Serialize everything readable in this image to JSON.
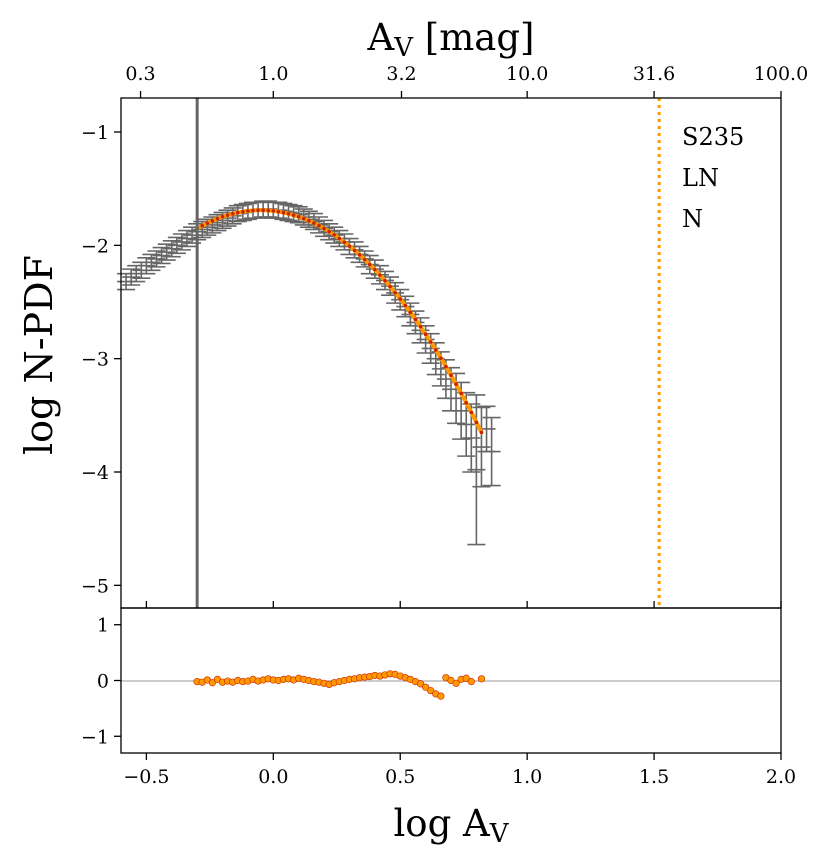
{
  "chart_data": [
    {
      "type": "scatter",
      "panel": "main",
      "title": "",
      "xlabel": "log A_V",
      "ylabel": "log N-PDF",
      "xlim": [
        -0.6,
        2.0
      ],
      "ylim": [
        -5.2,
        -0.7
      ],
      "top_axis": {
        "label": "A_V [mag]",
        "ticks": [
          {
            "logx": -0.523,
            "label": "0.3"
          },
          {
            "logx": 0.0,
            "label": "1.0"
          },
          {
            "logx": 0.505,
            "label": "3.2"
          },
          {
            "logx": 1.0,
            "label": "10.0"
          },
          {
            "logx": 1.5,
            "label": "31.6"
          },
          {
            "logx": 2.0,
            "label": "100.0"
          }
        ]
      },
      "xticks": [
        -0.5,
        0.0,
        0.5,
        1.0,
        1.5,
        2.0
      ],
      "xtick_labels": [
        "−0.5",
        "0.0",
        "0.5",
        "1.0",
        "1.5",
        "2.0"
      ],
      "yticks": [
        -1,
        -2,
        -3,
        -4,
        -5
      ],
      "ytick_labels": [
        "−1",
        "−2",
        "−3",
        "−4",
        "−5"
      ],
      "legend": [
        "S235",
        "LN",
        "N"
      ],
      "legend_placement": "top-right",
      "vertical_lines": [
        {
          "x": -0.3,
          "style": "solid",
          "color": "#666666"
        },
        {
          "x": 1.52,
          "style": "dotted",
          "color": "#ff9900"
        }
      ],
      "pdf_points": [
        {
          "x": -0.58,
          "y": -2.32,
          "err": 0.07
        },
        {
          "x": -0.56,
          "y": -2.28,
          "err": 0.07
        },
        {
          "x": -0.54,
          "y": -2.25,
          "err": 0.07
        },
        {
          "x": -0.52,
          "y": -2.22,
          "err": 0.07
        },
        {
          "x": -0.5,
          "y": -2.18,
          "err": 0.07
        },
        {
          "x": -0.48,
          "y": -2.15,
          "err": 0.07
        },
        {
          "x": -0.46,
          "y": -2.12,
          "err": 0.07
        },
        {
          "x": -0.44,
          "y": -2.09,
          "err": 0.07
        },
        {
          "x": -0.42,
          "y": -2.06,
          "err": 0.07
        },
        {
          "x": -0.4,
          "y": -2.03,
          "err": 0.07
        },
        {
          "x": -0.38,
          "y": -2.0,
          "err": 0.07
        },
        {
          "x": -0.36,
          "y": -1.97,
          "err": 0.07
        },
        {
          "x": -0.34,
          "y": -1.94,
          "err": 0.07
        },
        {
          "x": -0.32,
          "y": -1.91,
          "err": 0.07
        },
        {
          "x": -0.3,
          "y": -1.88,
          "err": 0.07
        },
        {
          "x": -0.28,
          "y": -1.86,
          "err": 0.07
        },
        {
          "x": -0.26,
          "y": -1.84,
          "err": 0.07
        },
        {
          "x": -0.24,
          "y": -1.82,
          "err": 0.07
        },
        {
          "x": -0.22,
          "y": -1.8,
          "err": 0.07
        },
        {
          "x": -0.2,
          "y": -1.78,
          "err": 0.07
        },
        {
          "x": -0.18,
          "y": -1.76,
          "err": 0.07
        },
        {
          "x": -0.16,
          "y": -1.74,
          "err": 0.07
        },
        {
          "x": -0.14,
          "y": -1.72,
          "err": 0.07
        },
        {
          "x": -0.12,
          "y": -1.71,
          "err": 0.07
        },
        {
          "x": -0.1,
          "y": -1.7,
          "err": 0.07
        },
        {
          "x": -0.08,
          "y": -1.69,
          "err": 0.07
        },
        {
          "x": -0.06,
          "y": -1.69,
          "err": 0.07
        },
        {
          "x": -0.04,
          "y": -1.68,
          "err": 0.07
        },
        {
          "x": -0.02,
          "y": -1.68,
          "err": 0.07
        },
        {
          "x": 0.0,
          "y": -1.69,
          "err": 0.07
        },
        {
          "x": 0.02,
          "y": -1.69,
          "err": 0.07
        },
        {
          "x": 0.04,
          "y": -1.7,
          "err": 0.07
        },
        {
          "x": 0.06,
          "y": -1.71,
          "err": 0.07
        },
        {
          "x": 0.08,
          "y": -1.72,
          "err": 0.07
        },
        {
          "x": 0.1,
          "y": -1.73,
          "err": 0.07
        },
        {
          "x": 0.12,
          "y": -1.75,
          "err": 0.07
        },
        {
          "x": 0.14,
          "y": -1.77,
          "err": 0.07
        },
        {
          "x": 0.16,
          "y": -1.79,
          "err": 0.07
        },
        {
          "x": 0.18,
          "y": -1.82,
          "err": 0.07
        },
        {
          "x": 0.2,
          "y": -1.85,
          "err": 0.07
        },
        {
          "x": 0.22,
          "y": -1.88,
          "err": 0.07
        },
        {
          "x": 0.24,
          "y": -1.91,
          "err": 0.07
        },
        {
          "x": 0.26,
          "y": -1.94,
          "err": 0.07
        },
        {
          "x": 0.28,
          "y": -1.97,
          "err": 0.07
        },
        {
          "x": 0.3,
          "y": -2.01,
          "err": 0.07
        },
        {
          "x": 0.32,
          "y": -2.04,
          "err": 0.07
        },
        {
          "x": 0.34,
          "y": -2.08,
          "err": 0.07
        },
        {
          "x": 0.36,
          "y": -2.12,
          "err": 0.07
        },
        {
          "x": 0.38,
          "y": -2.17,
          "err": 0.08
        },
        {
          "x": 0.4,
          "y": -2.21,
          "err": 0.08
        },
        {
          "x": 0.42,
          "y": -2.26,
          "err": 0.08
        },
        {
          "x": 0.44,
          "y": -2.31,
          "err": 0.08
        },
        {
          "x": 0.46,
          "y": -2.36,
          "err": 0.08
        },
        {
          "x": 0.48,
          "y": -2.42,
          "err": 0.09
        },
        {
          "x": 0.5,
          "y": -2.48,
          "err": 0.09
        },
        {
          "x": 0.52,
          "y": -2.54,
          "err": 0.09
        },
        {
          "x": 0.54,
          "y": -2.61,
          "err": 0.1
        },
        {
          "x": 0.56,
          "y": -2.68,
          "err": 0.1
        },
        {
          "x": 0.58,
          "y": -2.75,
          "err": 0.11
        },
        {
          "x": 0.6,
          "y": -2.83,
          "err": 0.12
        },
        {
          "x": 0.62,
          "y": -2.91,
          "err": 0.13
        },
        {
          "x": 0.64,
          "y": -3.0,
          "err": 0.14
        },
        {
          "x": 0.66,
          "y": -3.09,
          "err": 0.15
        },
        {
          "x": 0.68,
          "y": -3.18,
          "err": 0.17
        },
        {
          "x": 0.7,
          "y": -3.27,
          "err": 0.19
        },
        {
          "x": 0.72,
          "y": -3.35,
          "err": 0.22
        },
        {
          "x": 0.74,
          "y": -3.46,
          "err": 0.25
        },
        {
          "x": 0.76,
          "y": -3.58,
          "err": 0.28
        },
        {
          "x": 0.78,
          "y": -3.7,
          "err": 0.3
        },
        {
          "x": 0.8,
          "y": -3.98,
          "err": 0.66
        },
        {
          "x": 0.82,
          "y": -3.78,
          "err": 0.35
        },
        {
          "x": 0.84,
          "y": -3.62,
          "err": 0.2
        },
        {
          "x": 0.86,
          "y": -3.82,
          "err": 0.3
        }
      ],
      "fit_curve": {
        "name": "LN",
        "color": "#ff9900",
        "peak_x": -0.05,
        "peak_y": -1.69,
        "x_range": [
          -0.3,
          0.82
        ]
      }
    },
    {
      "type": "scatter",
      "panel": "residuals",
      "xlim": [
        -0.6,
        2.0
      ],
      "ylim": [
        -1.3,
        1.3
      ],
      "yticks": [
        1,
        0,
        -1
      ],
      "ytick_labels": [
        "1",
        "0",
        "−1"
      ],
      "reference_line": 0,
      "residuals": [
        {
          "x": -0.3,
          "y": -0.02
        },
        {
          "x": -0.28,
          "y": -0.03
        },
        {
          "x": -0.26,
          "y": 0.01
        },
        {
          "x": -0.24,
          "y": -0.04
        },
        {
          "x": -0.22,
          "y": 0.02
        },
        {
          "x": -0.2,
          "y": -0.03
        },
        {
          "x": -0.18,
          "y": -0.01
        },
        {
          "x": -0.16,
          "y": -0.03
        },
        {
          "x": -0.14,
          "y": 0.0
        },
        {
          "x": -0.12,
          "y": -0.02
        },
        {
          "x": -0.1,
          "y": -0.01
        },
        {
          "x": -0.08,
          "y": 0.02
        },
        {
          "x": -0.06,
          "y": -0.01
        },
        {
          "x": -0.04,
          "y": 0.01
        },
        {
          "x": -0.02,
          "y": 0.03
        },
        {
          "x": 0.0,
          "y": 0.01
        },
        {
          "x": 0.02,
          "y": 0.0
        },
        {
          "x": 0.04,
          "y": 0.02
        },
        {
          "x": 0.06,
          "y": 0.03
        },
        {
          "x": 0.08,
          "y": 0.01
        },
        {
          "x": 0.1,
          "y": 0.04
        },
        {
          "x": 0.12,
          "y": 0.02
        },
        {
          "x": 0.14,
          "y": 0.0
        },
        {
          "x": 0.16,
          "y": -0.02
        },
        {
          "x": 0.18,
          "y": -0.03
        },
        {
          "x": 0.2,
          "y": -0.05
        },
        {
          "x": 0.22,
          "y": -0.07
        },
        {
          "x": 0.24,
          "y": -0.04
        },
        {
          "x": 0.26,
          "y": -0.02
        },
        {
          "x": 0.28,
          "y": 0.0
        },
        {
          "x": 0.3,
          "y": 0.02
        },
        {
          "x": 0.32,
          "y": 0.03
        },
        {
          "x": 0.34,
          "y": 0.05
        },
        {
          "x": 0.36,
          "y": 0.06
        },
        {
          "x": 0.38,
          "y": 0.07
        },
        {
          "x": 0.4,
          "y": 0.09
        },
        {
          "x": 0.42,
          "y": 0.08
        },
        {
          "x": 0.44,
          "y": 0.1
        },
        {
          "x": 0.46,
          "y": 0.12
        },
        {
          "x": 0.48,
          "y": 0.11
        },
        {
          "x": 0.5,
          "y": 0.08
        },
        {
          "x": 0.52,
          "y": 0.05
        },
        {
          "x": 0.54,
          "y": 0.02
        },
        {
          "x": 0.56,
          "y": -0.02
        },
        {
          "x": 0.58,
          "y": -0.06
        },
        {
          "x": 0.6,
          "y": -0.12
        },
        {
          "x": 0.62,
          "y": -0.18
        },
        {
          "x": 0.64,
          "y": -0.24
        },
        {
          "x": 0.66,
          "y": -0.28
        },
        {
          "x": 0.68,
          "y": 0.05
        },
        {
          "x": 0.7,
          "y": 0.0
        },
        {
          "x": 0.72,
          "y": -0.05
        },
        {
          "x": 0.74,
          "y": 0.02
        },
        {
          "x": 0.76,
          "y": 0.04
        },
        {
          "x": 0.78,
          "y": -0.02
        },
        {
          "x": 0.82,
          "y": 0.03
        }
      ]
    }
  ]
}
